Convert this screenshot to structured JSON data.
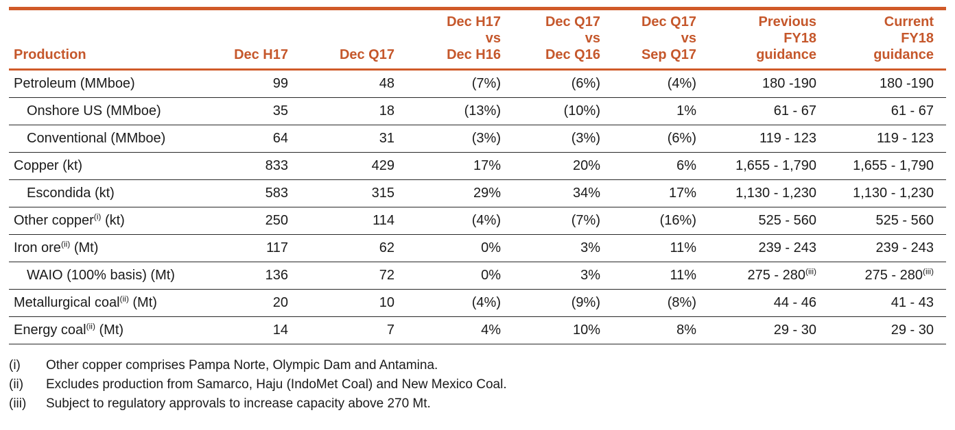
{
  "colors": {
    "accent_text": "#C5572B",
    "accent_border": "#D05A28",
    "row_line": "#262626",
    "text": "#1A1A1A"
  },
  "table": {
    "headers": [
      {
        "label": "Production",
        "align": "left"
      },
      {
        "label": "Dec H17"
      },
      {
        "label": "Dec Q17"
      },
      {
        "label": "Dec H17\nvs\nDec H16"
      },
      {
        "label": "Dec Q17\nvs\nDec Q16"
      },
      {
        "label": "Dec Q17\nvs\nSep Q17"
      },
      {
        "label": "Previous\nFY18\nguidance"
      },
      {
        "label": "Current\nFY18\nguidance"
      }
    ],
    "rows": [
      {
        "label": "Petroleum (MMboe)",
        "indent": false,
        "values": [
          "99",
          "48",
          "(7%)",
          "(6%)",
          "(4%)",
          "180 -190",
          "180 -190"
        ]
      },
      {
        "label": "Onshore US (MMboe)",
        "indent": true,
        "values": [
          "35",
          "18",
          "(13%)",
          "(10%)",
          "1%",
          "61 - 67",
          "61 - 67"
        ]
      },
      {
        "label": "Conventional (MMboe)",
        "indent": true,
        "values": [
          "64",
          "31",
          "(3%)",
          "(3%)",
          "(6%)",
          "119 - 123",
          "119 - 123"
        ]
      },
      {
        "label": "Copper (kt)",
        "indent": false,
        "values": [
          "833",
          "429",
          "17%",
          "20%",
          "6%",
          "1,655 - 1,790",
          "1,655 - 1,790"
        ]
      },
      {
        "label": "Escondida (kt)",
        "indent": true,
        "values": [
          "583",
          "315",
          "29%",
          "34%",
          "17%",
          "1,130 - 1,230",
          "1,130 - 1,230"
        ]
      },
      {
        "label": "Other copper^(i) (kt)",
        "indent": false,
        "values": [
          "250",
          "114",
          "(4%)",
          "(7%)",
          "(16%)",
          "525 - 560",
          "525 - 560"
        ]
      },
      {
        "label": "Iron ore^(ii) (Mt)",
        "indent": false,
        "values": [
          "117",
          "62",
          "0%",
          "3%",
          "11%",
          "239 - 243",
          "239 - 243"
        ]
      },
      {
        "label": "WAIO (100% basis) (Mt)",
        "indent": true,
        "values": [
          "136",
          "72",
          "0%",
          "3%",
          "11%",
          "275 - 280^(iii)",
          "275 - 280^(iii)"
        ]
      },
      {
        "label": "Metallurgical coal^(ii) (Mt)",
        "indent": false,
        "values": [
          "20",
          "10",
          "(4%)",
          "(9%)",
          "(8%)",
          "44 - 46",
          "41 - 43"
        ]
      },
      {
        "label": "Energy coal^(ii) (Mt)",
        "indent": false,
        "values": [
          "14",
          "7",
          "4%",
          "10%",
          "8%",
          "29 - 30",
          "29 - 30"
        ]
      }
    ]
  },
  "footnotes": [
    {
      "marker": "(i)",
      "text": "Other copper comprises Pampa Norte, Olympic Dam and Antamina."
    },
    {
      "marker": "(ii)",
      "text": "Excludes production from Samarco, Haju (IndoMet Coal) and New Mexico Coal."
    },
    {
      "marker": "(iii)",
      "text": "Subject to regulatory approvals to increase capacity above 270 Mt."
    }
  ]
}
